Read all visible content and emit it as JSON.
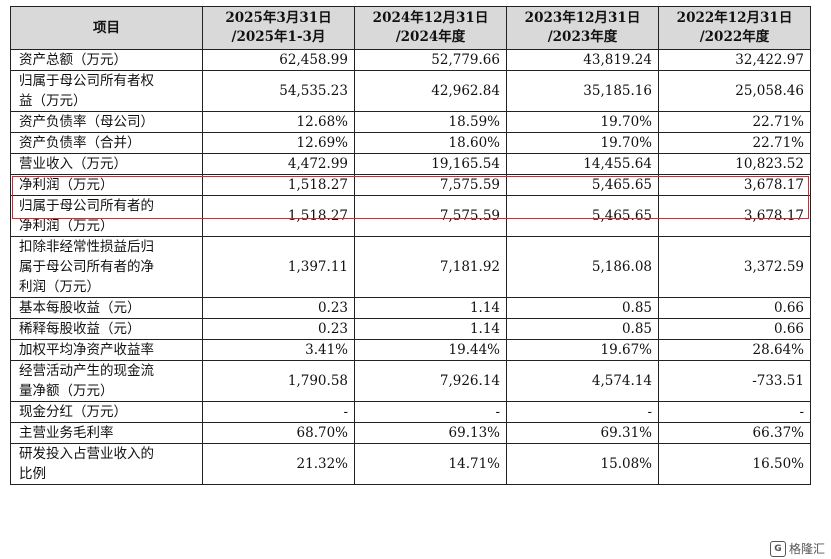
{
  "header": {
    "item": "项目",
    "col1": [
      "2025年3月31日",
      "/2025年1-3月"
    ],
    "col2": [
      "2024年12月31日",
      "/2024年度"
    ],
    "col3": [
      "2023年12月31日",
      "/2023年度"
    ],
    "col4": [
      "2022年12月31日",
      "/2022年度"
    ]
  },
  "rows": [
    {
      "label": [
        "资产总额（万元）"
      ],
      "values": [
        "62,458.99",
        "52,779.66",
        "43,819.24",
        "32,422.97"
      ]
    },
    {
      "label": [
        "归属于母公司所有者权",
        "益（万元）"
      ],
      "values": [
        "54,535.23",
        "42,962.84",
        "35,185.16",
        "25,058.46"
      ]
    },
    {
      "label": [
        "资产负债率（母公司）"
      ],
      "values": [
        "12.68%",
        "18.59%",
        "19.70%",
        "22.71%"
      ]
    },
    {
      "label": [
        "资产负债率（合并）"
      ],
      "values": [
        "12.69%",
        "18.60%",
        "19.70%",
        "22.71%"
      ]
    },
    {
      "label": [
        "营业收入（万元）"
      ],
      "values": [
        "4,472.99",
        "19,165.54",
        "14,455.64",
        "10,823.52"
      ]
    },
    {
      "label": [
        "净利润（万元）"
      ],
      "values": [
        "1,518.27",
        "7,575.59",
        "5,465.65",
        "3,678.17"
      ]
    },
    {
      "label": [
        "归属于母公司所有者的",
        "净利润（万元）"
      ],
      "values": [
        "1,518.27",
        "7,575.59",
        "5,465.65",
        "3,678.17"
      ]
    },
    {
      "label": [
        "扣除非经常性损益后归",
        "属于母公司所有者的净",
        "利润（万元）"
      ],
      "values": [
        "1,397.11",
        "7,181.92",
        "5,186.08",
        "3,372.59"
      ]
    },
    {
      "label": [
        "基本每股收益（元）"
      ],
      "values": [
        "0.23",
        "1.14",
        "0.85",
        "0.66"
      ]
    },
    {
      "label": [
        "稀释每股收益（元）"
      ],
      "values": [
        "0.23",
        "1.14",
        "0.85",
        "0.66"
      ]
    },
    {
      "label": [
        "加权平均净资产收益率"
      ],
      "values": [
        "3.41%",
        "19.44%",
        "19.67%",
        "28.64%"
      ]
    },
    {
      "label": [
        "经营活动产生的现金流",
        "量净额（万元）"
      ],
      "values": [
        "1,790.58",
        "7,926.14",
        "4,574.14",
        "-733.51"
      ]
    },
    {
      "label": [
        "现金分红（万元）"
      ],
      "values": [
        "-",
        "-",
        "-",
        "-"
      ]
    },
    {
      "label": [
        "主营业务毛利率"
      ],
      "values": [
        "68.70%",
        "69.13%",
        "69.31%",
        "66.37%"
      ]
    },
    {
      "label": [
        "研发投入占营业收入的",
        "比例"
      ],
      "values": [
        "21.32%",
        "14.71%",
        "15.08%",
        "16.50%"
      ]
    }
  ],
  "highlight_color": "#e0232f",
  "watermark": {
    "text": "格隆汇",
    "icon": "gelonghui-logo-icon"
  }
}
